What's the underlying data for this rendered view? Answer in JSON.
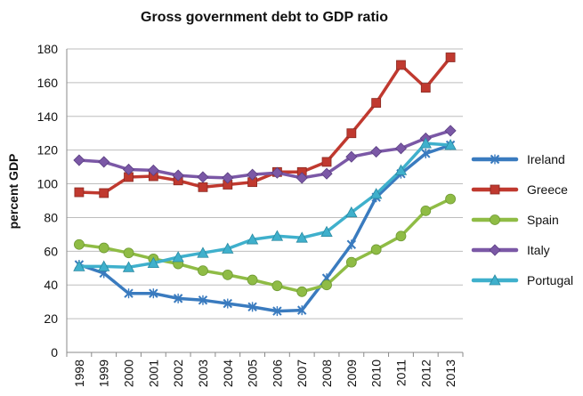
{
  "chart_data": {
    "type": "line",
    "title": "Gross government debt to GDP ratio",
    "xlabel": "",
    "ylabel": "percent GDP",
    "ylim": [
      0,
      180
    ],
    "yticks": [
      0,
      20,
      40,
      60,
      80,
      100,
      120,
      140,
      160,
      180
    ],
    "grid": "horizontal",
    "legend": "right",
    "categories": [
      "1998",
      "1999",
      "2000",
      "2001",
      "2002",
      "2003",
      "2004",
      "2005",
      "2006",
      "2007",
      "2008",
      "2009",
      "2010",
      "2011",
      "2012",
      "2013"
    ],
    "series": [
      {
        "name": "Ireland",
        "color": "#3a7bbf",
        "marker": "x",
        "values": [
          52,
          47,
          35,
          35,
          32,
          31,
          29,
          27,
          24.5,
          25,
          44,
          64,
          92,
          106,
          118,
          123
        ]
      },
      {
        "name": "Greece",
        "color": "#c0392f",
        "marker": "square",
        "values": [
          95,
          94.5,
          104,
          104.5,
          102,
          98,
          99.5,
          101,
          107,
          107,
          113,
          130,
          148,
          170.5,
          157,
          175
        ]
      },
      {
        "name": "Spain",
        "color": "#8fbc45",
        "marker": "circle",
        "values": [
          64,
          62,
          59,
          55.5,
          52.5,
          48.5,
          46,
          43,
          39.5,
          36,
          40,
          53.5,
          61,
          69,
          84,
          91
        ]
      },
      {
        "name": "Italy",
        "color": "#7b58a6",
        "marker": "diamond",
        "values": [
          114,
          113,
          108.5,
          108,
          105,
          104,
          103.5,
          105.5,
          106.5,
          103.5,
          106,
          116,
          119,
          121,
          127,
          131.5
        ]
      },
      {
        "name": "Portugal",
        "color": "#3fb0cc",
        "marker": "triangle",
        "values": [
          51,
          51,
          50.5,
          53,
          56.5,
          59,
          61.5,
          67,
          69,
          68,
          71.5,
          83,
          94,
          108,
          124,
          123
        ]
      }
    ]
  }
}
